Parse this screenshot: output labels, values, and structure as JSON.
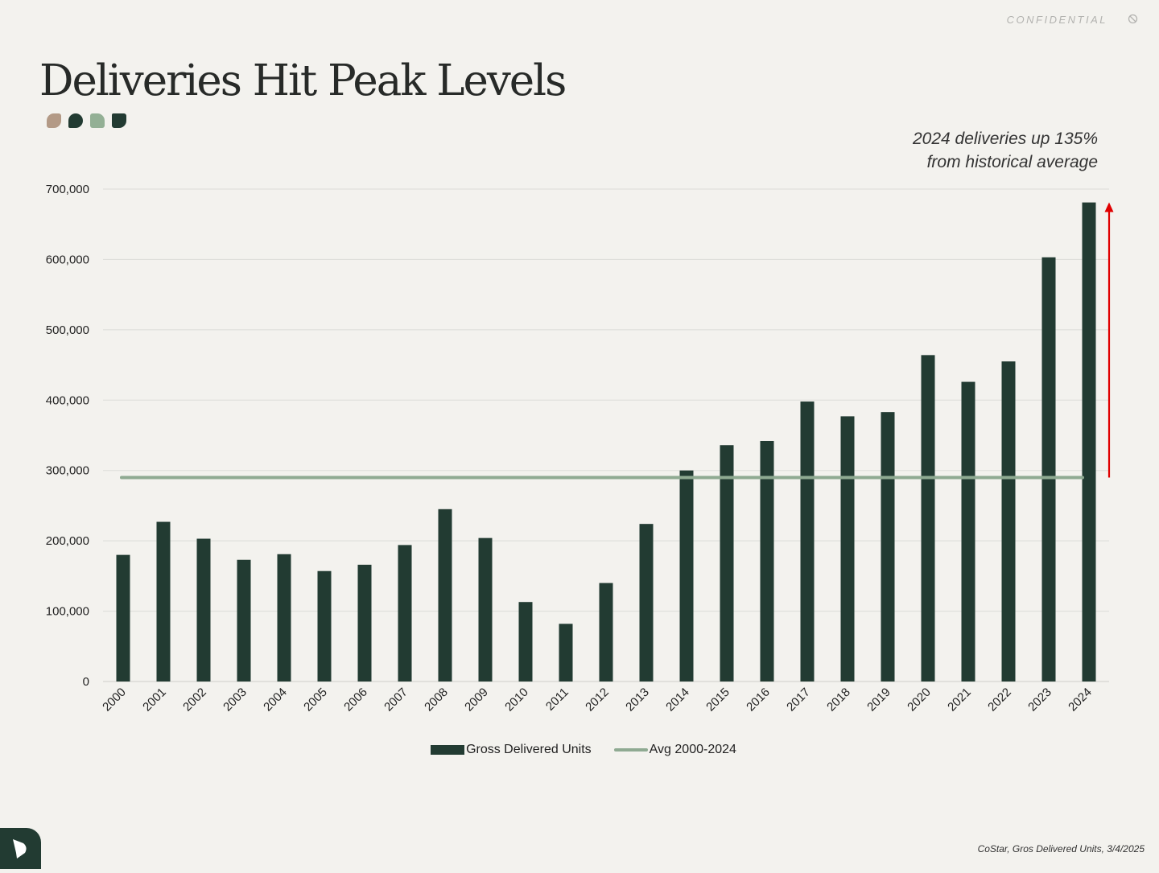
{
  "header": {
    "confidential_label": "CONFIDENTIAL",
    "confidential_icon": "no-entry-icon",
    "title": "Deliveries Hit Peak Levels"
  },
  "annotation": {
    "line1": "2024 deliveries up 135%",
    "line2": "from historical average"
  },
  "footer": {
    "source": "CoStar, Gros Delivered Units, 3/4/2025",
    "logo_icon": "brand-leaf-icon"
  },
  "colors": {
    "bar": "#223b32",
    "avg_line": "#8faa92",
    "arrow": "#e00000",
    "grid": "#dcdcd8"
  },
  "chart_data": {
    "type": "bar",
    "title": "Deliveries Hit Peak Levels",
    "xlabel": "",
    "ylabel": "",
    "ylim": [
      0,
      700000
    ],
    "grid": true,
    "legend_position": "bottom",
    "y_ticks": [
      0,
      100000,
      200000,
      300000,
      400000,
      500000,
      600000,
      700000
    ],
    "y_tick_labels": [
      "0",
      "100,000",
      "200,000",
      "300,000",
      "400,000",
      "500,000",
      "600,000",
      "700,000"
    ],
    "categories": [
      "2000",
      "2001",
      "2002",
      "2003",
      "2004",
      "2005",
      "2006",
      "2007",
      "2008",
      "2009",
      "2010",
      "2011",
      "2012",
      "2013",
      "2014",
      "2015",
      "2016",
      "2017",
      "2018",
      "2019",
      "2020",
      "2021",
      "2022",
      "2023",
      "2024"
    ],
    "series": [
      {
        "name": "Gross Delivered Units",
        "type": "bar",
        "values": [
          180000,
          227000,
          203000,
          173000,
          181000,
          157000,
          166000,
          194000,
          245000,
          204000,
          113000,
          82000,
          140000,
          224000,
          300000,
          336000,
          342000,
          398000,
          377000,
          383000,
          464000,
          426000,
          455000,
          603000,
          681000
        ]
      },
      {
        "name": "Avg 2000-2024",
        "type": "line",
        "value": 290000
      }
    ],
    "annotation": {
      "type": "arrow",
      "from_value": 290000,
      "to_value": 680000
    }
  }
}
